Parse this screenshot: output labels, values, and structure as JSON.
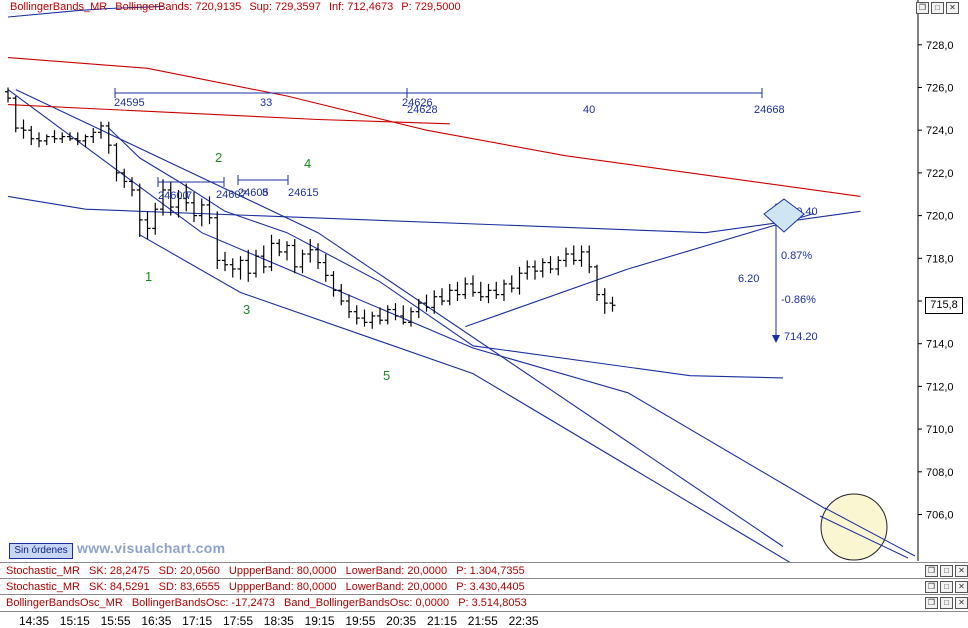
{
  "header": {
    "name": "BollingerBands_MR",
    "bb": "BollingerBands: 720,9135",
    "sup": "Sup: 729,3597",
    "inf": "Inf: 712,4673",
    "p": "P: 729,5000"
  },
  "indicators": [
    {
      "name": "Stochastic_MR",
      "a": "SK: 28,2475",
      "b": "SD: 20,0560",
      "c": "UppperBand: 80,0000",
      "d": "LowerBand: 20,0000",
      "e": "P: 1.304,7355"
    },
    {
      "name": "Stochastic_MR",
      "a": "SK: 84,5291",
      "b": "SD: 83,6555",
      "c": "UppperBand: 80,0000",
      "d": "LowerBand: 20,0000",
      "e": "P: 3.430,4405"
    },
    {
      "name": "BollingerBandsOsc_MR",
      "a": "BollingerBandsOsc: -17,2473",
      "b": "Band_BollingerBandsOsc: 0,0000",
      "c": "P: 3.514,8053",
      "d": "",
      "e": ""
    }
  ],
  "buttons": {
    "sin_ordenes": "Sin órdenes"
  },
  "watermark": "www.visualchart.com",
  "last_price": "715,8",
  "colors": {
    "up": "#000000",
    "bands": "#1a2fa0",
    "mid": "#cc0000",
    "label_green": "#1c8a1c",
    "label_blue": "#1a2fa0"
  },
  "chart_data": {
    "type": "candlestick",
    "y_ticks": [
      "706,0",
      "708,0",
      "710,0",
      "712,0",
      "714,0",
      "716,0",
      "718,0",
      "720,0",
      "722,0",
      "724,0",
      "726,0",
      "728,0"
    ],
    "ylim": [
      704.0,
      729.5
    ],
    "x_ticks": [
      "14:35",
      "15:15",
      "15:55",
      "16:35",
      "17:15",
      "17:55",
      "18:35",
      "19:15",
      "19:55",
      "20:35",
      "21:15",
      "21:55",
      "22:35"
    ],
    "bars": [
      {
        "o": 725.8,
        "h": 726.0,
        "l": 725.3,
        "c": 725.5
      },
      {
        "o": 725.5,
        "h": 725.6,
        "l": 723.9,
        "c": 724.1
      },
      {
        "o": 724.1,
        "h": 724.5,
        "l": 723.6,
        "c": 724.0
      },
      {
        "o": 724.0,
        "h": 724.2,
        "l": 723.3,
        "c": 723.6
      },
      {
        "o": 723.6,
        "h": 723.9,
        "l": 723.2,
        "c": 723.5
      },
      {
        "o": 723.5,
        "h": 723.8,
        "l": 723.3,
        "c": 723.7
      },
      {
        "o": 723.7,
        "h": 724.0,
        "l": 723.4,
        "c": 723.6
      },
      {
        "o": 723.6,
        "h": 723.9,
        "l": 723.4,
        "c": 723.7
      },
      {
        "o": 723.7,
        "h": 723.9,
        "l": 723.5,
        "c": 723.6
      },
      {
        "o": 723.6,
        "h": 723.9,
        "l": 723.3,
        "c": 723.5
      },
      {
        "o": 723.5,
        "h": 723.8,
        "l": 723.2,
        "c": 723.7
      },
      {
        "o": 723.7,
        "h": 724.1,
        "l": 723.4,
        "c": 723.9
      },
      {
        "o": 723.9,
        "h": 724.4,
        "l": 723.6,
        "c": 724.2
      },
      {
        "o": 724.2,
        "h": 724.4,
        "l": 722.9,
        "c": 723.3
      },
      {
        "o": 723.3,
        "h": 723.4,
        "l": 721.6,
        "c": 722.0
      },
      {
        "o": 722.0,
        "h": 722.2,
        "l": 721.3,
        "c": 721.6
      },
      {
        "o": 721.6,
        "h": 721.8,
        "l": 720.9,
        "c": 721.2
      },
      {
        "o": 721.2,
        "h": 721.5,
        "l": 719.0,
        "c": 719.8
      },
      {
        "o": 719.8,
        "h": 720.2,
        "l": 718.9,
        "c": 719.4
      },
      {
        "o": 719.4,
        "h": 720.6,
        "l": 719.1,
        "c": 720.3
      },
      {
        "o": 720.3,
        "h": 721.7,
        "l": 720.0,
        "c": 721.2
      },
      {
        "o": 721.2,
        "h": 721.6,
        "l": 720.0,
        "c": 720.4
      },
      {
        "o": 720.4,
        "h": 721.2,
        "l": 719.9,
        "c": 720.8
      },
      {
        "o": 720.8,
        "h": 721.5,
        "l": 720.2,
        "c": 720.6
      },
      {
        "o": 720.6,
        "h": 721.1,
        "l": 719.7,
        "c": 720.0
      },
      {
        "o": 720.0,
        "h": 720.8,
        "l": 719.5,
        "c": 720.5
      },
      {
        "o": 720.5,
        "h": 720.9,
        "l": 719.6,
        "c": 719.9
      },
      {
        "o": 719.9,
        "h": 720.2,
        "l": 717.5,
        "c": 717.9
      },
      {
        "o": 717.9,
        "h": 718.3,
        "l": 717.4,
        "c": 717.7
      },
      {
        "o": 717.7,
        "h": 718.0,
        "l": 717.1,
        "c": 717.5
      },
      {
        "o": 717.5,
        "h": 718.1,
        "l": 717.0,
        "c": 717.9
      },
      {
        "o": 717.9,
        "h": 718.4,
        "l": 716.9,
        "c": 717.3
      },
      {
        "o": 717.3,
        "h": 718.4,
        "l": 717.1,
        "c": 718.1
      },
      {
        "o": 718.1,
        "h": 718.6,
        "l": 717.3,
        "c": 717.6
      },
      {
        "o": 717.6,
        "h": 719.1,
        "l": 717.4,
        "c": 718.7
      },
      {
        "o": 718.7,
        "h": 718.9,
        "l": 718.1,
        "c": 718.3
      },
      {
        "o": 718.3,
        "h": 718.8,
        "l": 717.9,
        "c": 718.6
      },
      {
        "o": 718.6,
        "h": 718.9,
        "l": 717.3,
        "c": 717.6
      },
      {
        "o": 717.6,
        "h": 718.4,
        "l": 717.3,
        "c": 718.2
      },
      {
        "o": 718.2,
        "h": 718.9,
        "l": 717.8,
        "c": 718.4
      },
      {
        "o": 718.4,
        "h": 718.7,
        "l": 717.5,
        "c": 717.8
      },
      {
        "o": 717.8,
        "h": 718.2,
        "l": 716.9,
        "c": 717.2
      },
      {
        "o": 717.2,
        "h": 717.4,
        "l": 716.2,
        "c": 716.5
      },
      {
        "o": 716.5,
        "h": 716.8,
        "l": 715.8,
        "c": 716.0
      },
      {
        "o": 716.0,
        "h": 716.3,
        "l": 715.2,
        "c": 715.5
      },
      {
        "o": 715.5,
        "h": 715.8,
        "l": 714.9,
        "c": 715.2
      },
      {
        "o": 715.2,
        "h": 715.6,
        "l": 714.8,
        "c": 715.0
      },
      {
        "o": 715.0,
        "h": 715.5,
        "l": 714.7,
        "c": 715.3
      },
      {
        "o": 715.3,
        "h": 715.7,
        "l": 714.9,
        "c": 715.1
      },
      {
        "o": 715.1,
        "h": 715.8,
        "l": 714.9,
        "c": 715.6
      },
      {
        "o": 715.6,
        "h": 715.9,
        "l": 715.1,
        "c": 715.3
      },
      {
        "o": 715.3,
        "h": 715.8,
        "l": 714.9,
        "c": 715.0
      },
      {
        "o": 715.0,
        "h": 715.7,
        "l": 714.8,
        "c": 715.5
      },
      {
        "o": 715.5,
        "h": 716.1,
        "l": 715.2,
        "c": 715.9
      },
      {
        "o": 715.9,
        "h": 716.3,
        "l": 715.5,
        "c": 715.7
      },
      {
        "o": 715.7,
        "h": 716.5,
        "l": 715.4,
        "c": 716.2
      },
      {
        "o": 716.2,
        "h": 716.6,
        "l": 715.8,
        "c": 716.0
      },
      {
        "o": 716.0,
        "h": 716.8,
        "l": 715.8,
        "c": 716.5
      },
      {
        "o": 716.5,
        "h": 716.9,
        "l": 716.0,
        "c": 716.3
      },
      {
        "o": 716.3,
        "h": 717.1,
        "l": 716.1,
        "c": 716.8
      },
      {
        "o": 716.8,
        "h": 717.2,
        "l": 716.2,
        "c": 716.4
      },
      {
        "o": 716.4,
        "h": 716.9,
        "l": 716.0,
        "c": 716.2
      },
      {
        "o": 716.2,
        "h": 716.8,
        "l": 715.9,
        "c": 716.5
      },
      {
        "o": 716.5,
        "h": 716.9,
        "l": 716.1,
        "c": 716.3
      },
      {
        "o": 716.3,
        "h": 717.0,
        "l": 716.0,
        "c": 716.8
      },
      {
        "o": 716.8,
        "h": 717.2,
        "l": 716.4,
        "c": 716.6
      },
      {
        "o": 716.6,
        "h": 717.6,
        "l": 716.3,
        "c": 717.3
      },
      {
        "o": 717.3,
        "h": 717.9,
        "l": 717.0,
        "c": 717.6
      },
      {
        "o": 717.6,
        "h": 717.9,
        "l": 717.0,
        "c": 717.4
      },
      {
        "o": 717.4,
        "h": 718.0,
        "l": 717.1,
        "c": 717.8
      },
      {
        "o": 717.8,
        "h": 718.1,
        "l": 717.3,
        "c": 717.5
      },
      {
        "o": 717.5,
        "h": 718.1,
        "l": 717.2,
        "c": 717.9
      },
      {
        "o": 717.9,
        "h": 718.5,
        "l": 717.6,
        "c": 718.2
      },
      {
        "o": 718.2,
        "h": 718.6,
        "l": 717.7,
        "c": 717.9
      },
      {
        "o": 717.9,
        "h": 718.6,
        "l": 717.6,
        "c": 718.3
      },
      {
        "o": 718.3,
        "h": 718.6,
        "l": 717.3,
        "c": 717.6
      },
      {
        "o": 717.6,
        "h": 717.7,
        "l": 716.0,
        "c": 716.3
      },
      {
        "o": 716.3,
        "h": 716.6,
        "l": 715.4,
        "c": 715.9
      },
      {
        "o": 715.9,
        "h": 716.2,
        "l": 715.5,
        "c": 715.8
      }
    ],
    "lines": {
      "upper_band": [
        [
          0,
          729.3
        ],
        [
          9,
          729.6
        ],
        [
          13,
          729.7
        ],
        [
          20,
          729.8
        ]
      ],
      "lower_band": [
        [
          13,
          724.1
        ],
        [
          17,
          722.7
        ],
        [
          22,
          721.6
        ],
        [
          28,
          720.2
        ],
        [
          36,
          719.2
        ],
        [
          48,
          716.9
        ],
        [
          60,
          713.9
        ],
        [
          78,
          713.0
        ],
        [
          88,
          712.5
        ],
        [
          100,
          712.4
        ]
      ],
      "middle": [
        [
          0,
          727.4
        ],
        [
          18,
          726.9
        ],
        [
          36,
          725.6
        ],
        [
          54,
          724.0
        ],
        [
          72,
          722.8
        ],
        [
          92,
          721.8
        ],
        [
          110,
          720.9
        ]
      ],
      "lower_trend": [
        [
          0,
          725.9
        ],
        [
          25,
          719.2
        ],
        [
          60,
          713.8
        ],
        [
          80,
          711.7
        ],
        [
          110,
          705.3
        ]
      ],
      "resistance": [
        [
          1,
          725.9
        ],
        [
          40,
          719.2
        ],
        [
          100,
          704.5
        ]
      ],
      "flat_line": [
        [
          0,
          720.9
        ],
        [
          10,
          720.3
        ],
        [
          90,
          719.2
        ],
        [
          110,
          720.2
        ]
      ],
      "support_trend": [
        [
          59,
          714.8
        ],
        [
          80,
          717.5
        ],
        [
          104,
          720.1
        ]
      ],
      "red_flat": [
        [
          0,
          725.2
        ],
        [
          40,
          724.5
        ],
        [
          57,
          724.3
        ]
      ],
      "lower_channel": [
        [
          17,
          719.1
        ],
        [
          30,
          716.4
        ],
        [
          60,
          712.6
        ],
        [
          103,
          703.3
        ]
      ]
    },
    "labels_green": [
      "1",
      "2",
      "3",
      "4",
      "5"
    ],
    "labels_blue": [
      "24595",
      "33",
      "24626",
      "24628",
      "40",
      "24668",
      "24600",
      "7",
      "24607",
      "24605",
      "8",
      "24615",
      "6.20",
      "0.87%",
      "-0.86%",
      "720.40",
      "714.20"
    ]
  }
}
